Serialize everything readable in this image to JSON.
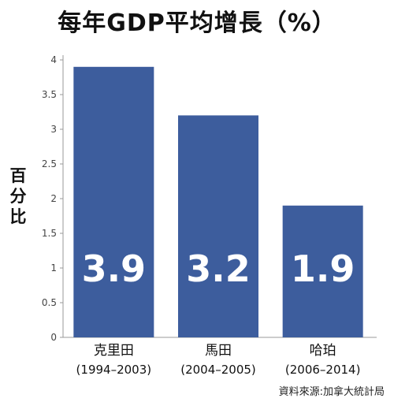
{
  "title": "每年GDP平均增長（%）",
  "source": "資料來源:加拿大統計局",
  "chart_data": {
    "type": "bar",
    "title": "每年GDP平均增長（%）",
    "ylabel": "百分比",
    "xlabel": "",
    "categories": [
      {
        "name": "克里田",
        "period": "(1994–2003)"
      },
      {
        "name": "馬田",
        "period": "(2004–2005)"
      },
      {
        "name": "哈珀",
        "period": "(2006–2014)"
      }
    ],
    "values": [
      3.9,
      3.2,
      1.9
    ],
    "data_labels": [
      "3.9",
      "3.2",
      "1.9"
    ],
    "ylim": [
      0,
      4
    ],
    "yticks": [
      "0",
      "0.5",
      "1",
      "1.5",
      "2",
      "2.5",
      "3",
      "3.5",
      "4"
    ],
    "grid": false,
    "legend": "none",
    "colors": {
      "bar": "#3d5d9d",
      "data_label": "#ffffff",
      "axis": "#999999"
    }
  }
}
